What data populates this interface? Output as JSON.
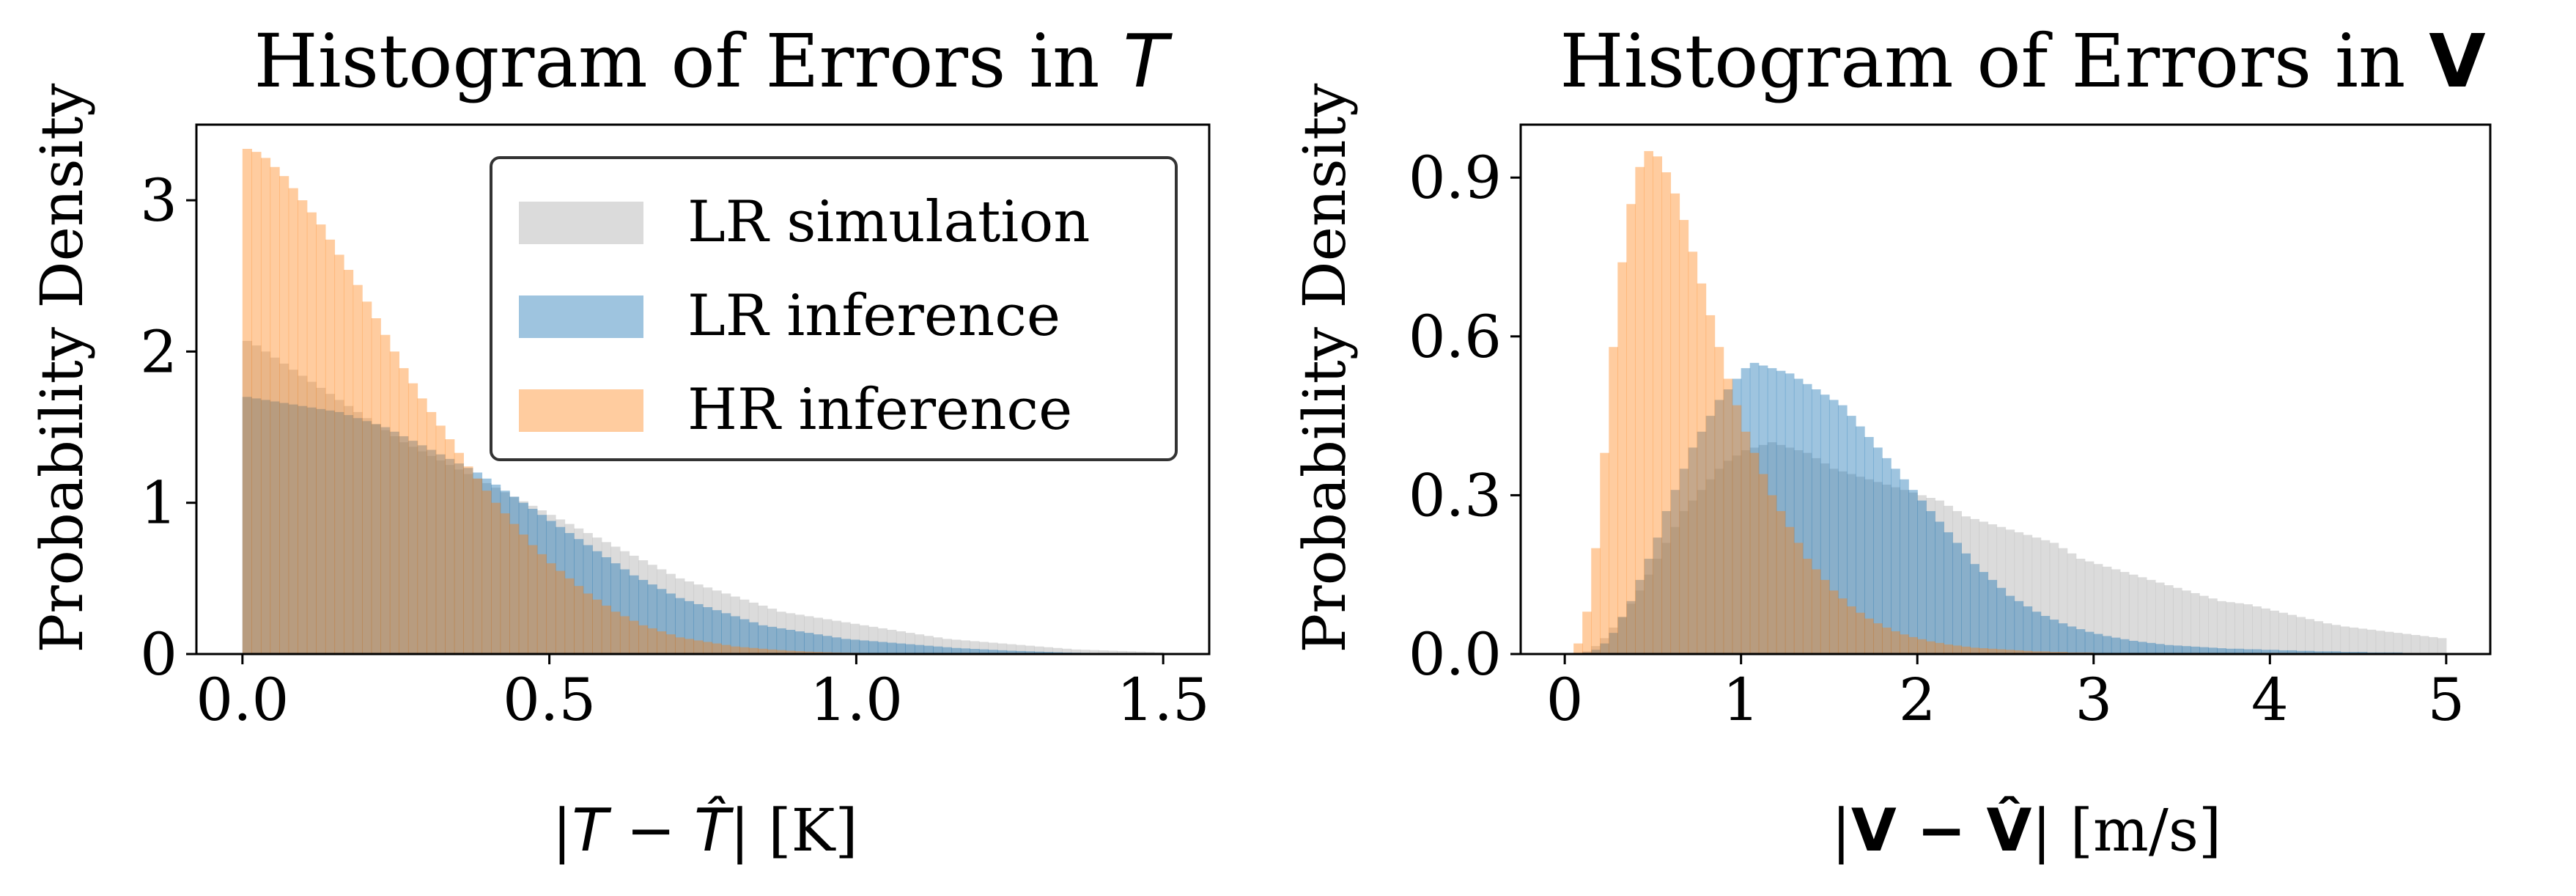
{
  "chart_data": [
    {
      "type": "histogram",
      "title": {
        "prefix": "Histogram of Errors in ",
        "symbol": "T"
      },
      "ylabel": "Probability Density",
      "xlabel": {
        "prefix": "|",
        "expr": "T − T̂",
        "suffix": "| [K]"
      },
      "xlim": [
        -0.075,
        1.575
      ],
      "ylim": [
        0,
        3.5
      ],
      "xticks": [
        "0.0",
        "0.5",
        "1.0",
        "1.5"
      ],
      "xtick_values": [
        0.0,
        0.5,
        1.0,
        1.5
      ],
      "yticks": [
        "0",
        "1",
        "2",
        "3"
      ],
      "ytick_values": [
        0,
        1,
        2,
        3
      ],
      "bin_range": [
        0.0,
        1.5
      ],
      "legend": {
        "position": "upper right"
      },
      "series": [
        {
          "name": "LR simulation",
          "color": "#b7b7b7",
          "opacity": 0.5,
          "values": [
            2.07,
            2.04,
            2.0,
            1.96,
            1.92,
            1.88,
            1.84,
            1.8,
            1.76,
            1.72,
            1.68,
            1.64,
            1.6,
            1.56,
            1.52,
            1.48,
            1.44,
            1.4,
            1.37,
            1.34,
            1.31,
            1.28,
            1.25,
            1.22,
            1.19,
            1.16,
            1.13,
            1.1,
            1.07,
            1.04,
            1.01,
            0.98,
            0.95,
            0.92,
            0.89,
            0.86,
            0.83,
            0.8,
            0.77,
            0.74,
            0.71,
            0.68,
            0.65,
            0.62,
            0.59,
            0.56,
            0.53,
            0.5,
            0.48,
            0.46,
            0.44,
            0.42,
            0.4,
            0.38,
            0.36,
            0.34,
            0.32,
            0.3,
            0.28,
            0.27,
            0.26,
            0.25,
            0.24,
            0.23,
            0.22,
            0.21,
            0.2,
            0.19,
            0.18,
            0.17,
            0.16,
            0.15,
            0.14,
            0.13,
            0.12,
            0.11,
            0.1,
            0.095,
            0.09,
            0.085,
            0.08,
            0.075,
            0.07,
            0.065,
            0.06,
            0.055,
            0.05,
            0.045,
            0.04,
            0.035,
            0.03,
            0.028,
            0.026,
            0.024,
            0.022,
            0.02,
            0.018,
            0.016,
            0.014,
            0.012
          ]
        },
        {
          "name": "LR inference",
          "color": "#1f77b4",
          "opacity": 0.43,
          "values": [
            1.7,
            1.69,
            1.68,
            1.67,
            1.66,
            1.65,
            1.64,
            1.63,
            1.62,
            1.61,
            1.6,
            1.58,
            1.56,
            1.54,
            1.52,
            1.5,
            1.47,
            1.44,
            1.41,
            1.38,
            1.35,
            1.32,
            1.29,
            1.26,
            1.23,
            1.2,
            1.16,
            1.12,
            1.08,
            1.04,
            1.0,
            0.96,
            0.92,
            0.88,
            0.84,
            0.8,
            0.76,
            0.72,
            0.68,
            0.64,
            0.6,
            0.56,
            0.52,
            0.49,
            0.46,
            0.43,
            0.4,
            0.37,
            0.35,
            0.33,
            0.31,
            0.29,
            0.27,
            0.25,
            0.23,
            0.21,
            0.19,
            0.18,
            0.17,
            0.16,
            0.15,
            0.14,
            0.13,
            0.12,
            0.11,
            0.1,
            0.095,
            0.09,
            0.085,
            0.08,
            0.075,
            0.07,
            0.065,
            0.06,
            0.055,
            0.05,
            0.045,
            0.04,
            0.037,
            0.034,
            0.031,
            0.028,
            0.025,
            0.022,
            0.02,
            0.018,
            0.016,
            0.014,
            0.012,
            0.01,
            0.009,
            0.008,
            0.007,
            0.006,
            0.005,
            0.004,
            0.004,
            0.003,
            0.003,
            0.002
          ]
        },
        {
          "name": "HR inference",
          "color": "#ff7f0e",
          "opacity": 0.4,
          "values": [
            3.34,
            3.32,
            3.28,
            3.22,
            3.16,
            3.08,
            3.0,
            2.92,
            2.84,
            2.74,
            2.64,
            2.54,
            2.44,
            2.33,
            2.22,
            2.11,
            2.0,
            1.89,
            1.79,
            1.69,
            1.6,
            1.51,
            1.42,
            1.33,
            1.24,
            1.16,
            1.08,
            1.0,
            0.93,
            0.86,
            0.79,
            0.72,
            0.66,
            0.6,
            0.55,
            0.5,
            0.45,
            0.4,
            0.36,
            0.32,
            0.28,
            0.25,
            0.22,
            0.19,
            0.17,
            0.15,
            0.13,
            0.11,
            0.1,
            0.09,
            0.08,
            0.07,
            0.06,
            0.05,
            0.045,
            0.04,
            0.035,
            0.03,
            0.026,
            0.022,
            0.019,
            0.016,
            0.014,
            0.012,
            0.01,
            0.009,
            0.008,
            0.007,
            0.006,
            0.005,
            0.004,
            0.004,
            0.003,
            0.003,
            0.002,
            0.002,
            0.002,
            0.001,
            0.001,
            0.001,
            0.001,
            0.001,
            0.001,
            0.001,
            0.001,
            0.001,
            0.0,
            0.0,
            0.0,
            0.0,
            0.0,
            0.0,
            0.0,
            0.0,
            0.0,
            0.0,
            0.0,
            0.0,
            0.0,
            0.0
          ]
        }
      ]
    },
    {
      "type": "histogram",
      "title": {
        "prefix": "Histogram of Errors in ",
        "symbol": "V"
      },
      "ylabel": "Probability Density",
      "xlabel": {
        "prefix": "|",
        "expr": "V − V̂",
        "suffix": "| [m/s]"
      },
      "xlim": [
        -0.25,
        5.25
      ],
      "ylim": [
        0,
        1.0
      ],
      "xticks": [
        "0",
        "1",
        "2",
        "3",
        "4",
        "5"
      ],
      "xtick_values": [
        0,
        1,
        2,
        3,
        4,
        5
      ],
      "yticks": [
        "0.0",
        "0.3",
        "0.6",
        "0.9"
      ],
      "ytick_values": [
        0.0,
        0.3,
        0.6,
        0.9
      ],
      "bin_range": [
        0.0,
        5.0
      ],
      "series": [
        {
          "name": "LR simulation",
          "color": "#b7b7b7",
          "opacity": 0.5,
          "values": [
            0.0,
            0.002,
            0.005,
            0.015,
            0.03,
            0.05,
            0.07,
            0.095,
            0.12,
            0.15,
            0.18,
            0.21,
            0.24,
            0.27,
            0.29,
            0.31,
            0.33,
            0.35,
            0.365,
            0.375,
            0.385,
            0.39,
            0.395,
            0.4,
            0.395,
            0.39,
            0.385,
            0.38,
            0.37,
            0.36,
            0.35,
            0.345,
            0.34,
            0.335,
            0.33,
            0.325,
            0.32,
            0.315,
            0.31,
            0.305,
            0.3,
            0.295,
            0.29,
            0.28,
            0.27,
            0.26,
            0.255,
            0.25,
            0.245,
            0.24,
            0.235,
            0.23,
            0.225,
            0.22,
            0.215,
            0.21,
            0.2,
            0.19,
            0.18,
            0.175,
            0.17,
            0.165,
            0.16,
            0.155,
            0.15,
            0.145,
            0.14,
            0.135,
            0.13,
            0.125,
            0.12,
            0.115,
            0.11,
            0.105,
            0.1,
            0.098,
            0.096,
            0.094,
            0.09,
            0.086,
            0.082,
            0.078,
            0.074,
            0.07,
            0.066,
            0.062,
            0.058,
            0.055,
            0.052,
            0.05,
            0.048,
            0.046,
            0.044,
            0.042,
            0.04,
            0.038,
            0.036,
            0.034,
            0.032,
            0.03
          ]
        },
        {
          "name": "LR inference",
          "color": "#1f77b4",
          "opacity": 0.43,
          "values": [
            0.0,
            0.001,
            0.003,
            0.008,
            0.02,
            0.04,
            0.07,
            0.1,
            0.14,
            0.18,
            0.22,
            0.27,
            0.31,
            0.35,
            0.39,
            0.42,
            0.45,
            0.48,
            0.5,
            0.52,
            0.54,
            0.55,
            0.545,
            0.54,
            0.535,
            0.53,
            0.52,
            0.51,
            0.5,
            0.49,
            0.48,
            0.47,
            0.45,
            0.43,
            0.41,
            0.39,
            0.37,
            0.35,
            0.33,
            0.31,
            0.29,
            0.27,
            0.25,
            0.23,
            0.21,
            0.19,
            0.17,
            0.155,
            0.14,
            0.125,
            0.11,
            0.1,
            0.09,
            0.08,
            0.072,
            0.065,
            0.058,
            0.052,
            0.047,
            0.042,
            0.038,
            0.034,
            0.031,
            0.028,
            0.025,
            0.023,
            0.021,
            0.019,
            0.017,
            0.016,
            0.015,
            0.014,
            0.013,
            0.012,
            0.011,
            0.01,
            0.01,
            0.009,
            0.009,
            0.008,
            0.008,
            0.007,
            0.007,
            0.006,
            0.006,
            0.005,
            0.005,
            0.005,
            0.004,
            0.004,
            0.004,
            0.003,
            0.003,
            0.003,
            0.003,
            0.002,
            0.002,
            0.002,
            0.002,
            0.002
          ]
        },
        {
          "name": "HR inference",
          "color": "#ff7f0e",
          "opacity": 0.4,
          "values": [
            0.0,
            0.02,
            0.08,
            0.2,
            0.38,
            0.58,
            0.74,
            0.85,
            0.92,
            0.95,
            0.94,
            0.91,
            0.87,
            0.82,
            0.76,
            0.7,
            0.64,
            0.58,
            0.52,
            0.47,
            0.42,
            0.38,
            0.34,
            0.3,
            0.27,
            0.24,
            0.21,
            0.18,
            0.16,
            0.14,
            0.12,
            0.105,
            0.09,
            0.078,
            0.067,
            0.058,
            0.05,
            0.043,
            0.037,
            0.032,
            0.028,
            0.024,
            0.021,
            0.018,
            0.016,
            0.014,
            0.012,
            0.011,
            0.01,
            0.009,
            0.008,
            0.007,
            0.006,
            0.005,
            0.005,
            0.004,
            0.004,
            0.003,
            0.003,
            0.003,
            0.002,
            0.002,
            0.002,
            0.002,
            0.001,
            0.001,
            0.001,
            0.001,
            0.001,
            0.001,
            0.001,
            0.001,
            0.001,
            0.001,
            0.001,
            0.001,
            0.0,
            0.0,
            0.0,
            0.0,
            0.0,
            0.0,
            0.0,
            0.0,
            0.0,
            0.0,
            0.0,
            0.0,
            0.0,
            0.0,
            0.0,
            0.0,
            0.0,
            0.0,
            0.0,
            0.0,
            0.0,
            0.0,
            0.0,
            0.0
          ]
        }
      ]
    }
  ]
}
